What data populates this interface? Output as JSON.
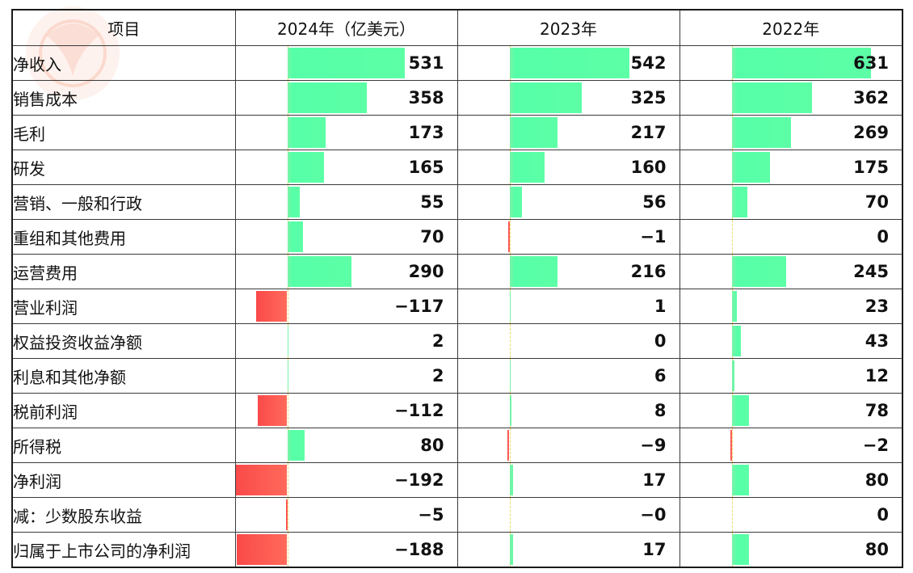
{
  "header": {
    "col_item": "项目",
    "col_2024": "2024年（亿美元）",
    "col_2023": "2023年",
    "col_2022": "2022年"
  },
  "chart_data": {
    "type": "table",
    "columns": [
      "2024年（亿美元）",
      "2023年",
      "2022年"
    ],
    "rows": [
      {
        "label": "净收入",
        "values": [
          531,
          542,
          631
        ],
        "display": [
          "531",
          "542",
          "631"
        ]
      },
      {
        "label": "销售成本",
        "values": [
          358,
          325,
          362
        ],
        "display": [
          "358",
          "325",
          "362"
        ]
      },
      {
        "label": "毛利",
        "values": [
          173,
          217,
          269
        ],
        "display": [
          "173",
          "217",
          "269"
        ]
      },
      {
        "label": "研发",
        "values": [
          165,
          160,
          175
        ],
        "display": [
          "165",
          "160",
          "175"
        ]
      },
      {
        "label": "营销、一般和行政",
        "values": [
          55,
          56,
          70
        ],
        "display": [
          "55",
          "56",
          "70"
        ]
      },
      {
        "label": "重组和其他费用",
        "values": [
          70,
          -1,
          0
        ],
        "display": [
          "70",
          "−1",
          "0"
        ]
      },
      {
        "label": "运营费用",
        "values": [
          290,
          216,
          245
        ],
        "display": [
          "290",
          "216",
          "245"
        ]
      },
      {
        "label": "营业利润",
        "values": [
          -117,
          1,
          23
        ],
        "display": [
          "−117",
          "1",
          "23"
        ]
      },
      {
        "label": "权益投资收益净额",
        "values": [
          2,
          0,
          43
        ],
        "display": [
          "2",
          "0",
          "43"
        ]
      },
      {
        "label": "利息和其他净额",
        "values": [
          2,
          6,
          12
        ],
        "display": [
          "2",
          "6",
          "12"
        ]
      },
      {
        "label": "税前利润",
        "values": [
          -112,
          8,
          78
        ],
        "display": [
          "−112",
          "8",
          "78"
        ]
      },
      {
        "label": "所得税",
        "values": [
          80,
          -9,
          -2
        ],
        "display": [
          "80",
          "−9",
          "−2"
        ]
      },
      {
        "label": "净利润",
        "values": [
          -192,
          17,
          80
        ],
        "display": [
          "−192",
          "17",
          "80"
        ]
      },
      {
        "label": "减：少数股东收益",
        "values": [
          -5,
          0,
          0
        ],
        "display": [
          "−5",
          "−0",
          "0"
        ]
      },
      {
        "label": "归属于上市公司的净利润",
        "values": [
          -188,
          17,
          80
        ],
        "display": [
          "−188",
          "17",
          "80"
        ]
      }
    ],
    "bar_colors": {
      "positive": "#5cffa6",
      "negative": "#fa4a4a"
    }
  }
}
